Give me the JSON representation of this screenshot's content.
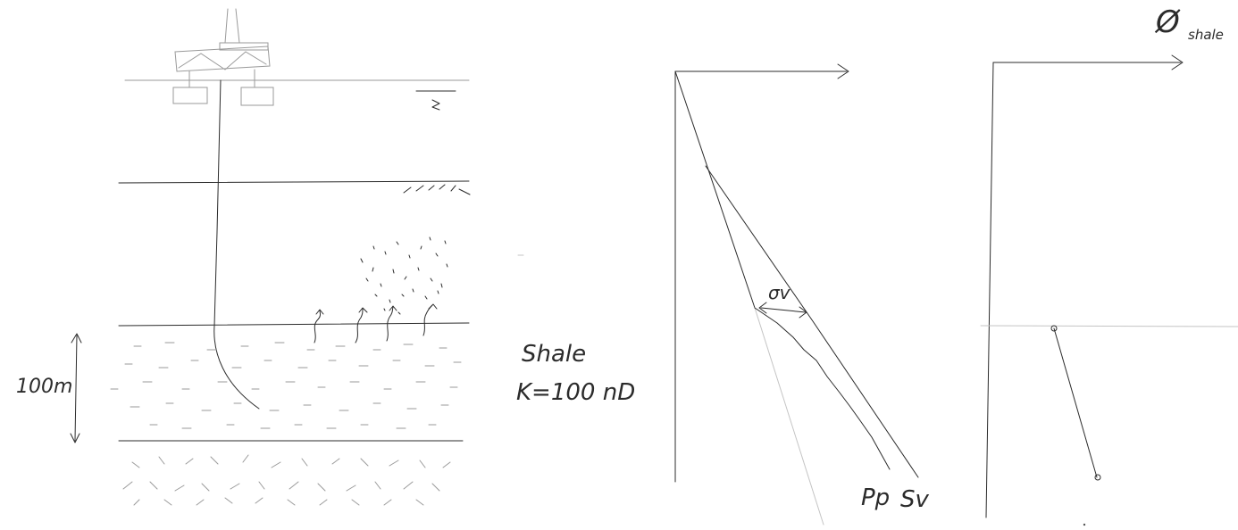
{
  "left_section": {
    "thickness_label": "100m",
    "formation_label": "Shale",
    "permeability_label": "K=100 nD"
  },
  "middle_plot": {
    "sigma_label": "σv",
    "pore_pressure_label": "Pp",
    "overburden_label": "Sv"
  },
  "right_plot": {
    "porosity_symbol": "Ø",
    "porosity_subscript": "shale"
  }
}
